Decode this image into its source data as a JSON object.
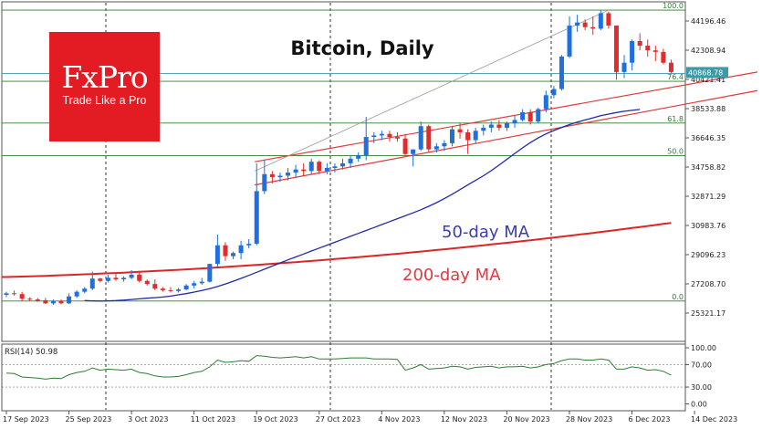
{
  "chart_data": {
    "type": "candlestick",
    "title": "Bitcoin, Daily",
    "brand": {
      "name": "FxPro",
      "tagline": "Trade Like a Pro"
    },
    "price_axis_ticks": [
      "44196.46",
      "42308.94",
      "40421.41",
      "38533.88",
      "36646.35",
      "34758.82",
      "32871.29",
      "30983.76",
      "29096.23",
      "27208.70",
      "25321.17"
    ],
    "current_price": "40868.78",
    "date_ticks": [
      "17 Sep 2023",
      "25 Sep 2023",
      "3 Oct 2023",
      "11 Oct 2023",
      "19 Oct 2023",
      "27 Oct 2023",
      "4 Nov 2023",
      "12 Nov 2023",
      "20 Nov 2023",
      "28 Nov 2023",
      "6 Dec 2023",
      "14 Dec 2023"
    ],
    "fibonacci_levels": [
      {
        "label": "100.0",
        "price": 44900
      },
      {
        "label": "76.4",
        "price": 40300
      },
      {
        "label": "61.8",
        "price": 37600
      },
      {
        "label": "50.0",
        "price": 35500
      },
      {
        "label": "0.0",
        "price": 26100
      }
    ],
    "annotations": [
      {
        "text": "50-day MA",
        "color": "#3a3fb0"
      },
      {
        "text": "200-day MA",
        "color": "#e0393e"
      }
    ],
    "series": [
      {
        "name": "candles",
        "up_color": "#1f6fdc",
        "down_color": "#e32b2b",
        "ohlc": [
          [
            26500,
            26700,
            26350,
            26600
          ],
          [
            26600,
            26780,
            26450,
            26550
          ],
          [
            26550,
            26700,
            26100,
            26250
          ],
          [
            26250,
            26350,
            26100,
            26200
          ],
          [
            26200,
            26300,
            26050,
            26120
          ],
          [
            26150,
            26300,
            25900,
            25950
          ],
          [
            25950,
            26200,
            25850,
            26100
          ],
          [
            26100,
            26200,
            25900,
            25950
          ],
          [
            25950,
            26600,
            25900,
            26400
          ],
          [
            26400,
            26800,
            26300,
            26700
          ],
          [
            26700,
            27000,
            26600,
            26900
          ],
          [
            26900,
            28000,
            26800,
            27550
          ],
          [
            27550,
            27600,
            27300,
            27400
          ],
          [
            27400,
            27800,
            27300,
            27600
          ],
          [
            27600,
            27900,
            27400,
            27500
          ],
          [
            27500,
            27700,
            27350,
            27600
          ],
          [
            27600,
            28100,
            27500,
            27800
          ],
          [
            27800,
            28000,
            27300,
            27400
          ],
          [
            27400,
            27500,
            27100,
            27200
          ],
          [
            27200,
            27500,
            26800,
            26900
          ],
          [
            26900,
            27000,
            26700,
            26800
          ],
          [
            26800,
            27000,
            26650,
            26750
          ],
          [
            26750,
            26950,
            26650,
            26850
          ],
          [
            26850,
            27200,
            26800,
            27100
          ],
          [
            27100,
            27400,
            26900,
            27250
          ],
          [
            27250,
            27600,
            27150,
            27350
          ],
          [
            27350,
            28500,
            27300,
            28500
          ],
          [
            28500,
            30400,
            28300,
            29700
          ],
          [
            29700,
            29900,
            28700,
            29000
          ],
          [
            29000,
            29300,
            28800,
            29200
          ],
          [
            29200,
            30000,
            28800,
            29700
          ],
          [
            29700,
            30100,
            29500,
            29800
          ],
          [
            29800,
            35000,
            29700,
            33200
          ],
          [
            33200,
            35200,
            33000,
            34300
          ],
          [
            34300,
            34500,
            33700,
            34100
          ],
          [
            34100,
            34400,
            33800,
            34200
          ],
          [
            34200,
            34700,
            33900,
            34400
          ],
          [
            34400,
            34900,
            34100,
            34600
          ],
          [
            34600,
            35000,
            34200,
            34500
          ],
          [
            34500,
            35300,
            34300,
            35100
          ],
          [
            35100,
            35200,
            34300,
            34500
          ],
          [
            34500,
            35000,
            34300,
            34700
          ],
          [
            34700,
            35000,
            34400,
            34800
          ],
          [
            34800,
            35300,
            34600,
            35000
          ],
          [
            35000,
            35500,
            34700,
            35300
          ],
          [
            35300,
            35700,
            35100,
            35500
          ],
          [
            35500,
            38000,
            35200,
            36700
          ],
          [
            36700,
            37000,
            36300,
            36800
          ],
          [
            36800,
            37100,
            36500,
            36900
          ],
          [
            36900,
            37100,
            36400,
            36700
          ],
          [
            36700,
            37000,
            36400,
            36600
          ],
          [
            36600,
            36900,
            35500,
            35600
          ],
          [
            35600,
            35900,
            34800,
            35900
          ],
          [
            35900,
            37700,
            35800,
            37400
          ],
          [
            37400,
            37500,
            35700,
            35900
          ],
          [
            35900,
            36300,
            35700,
            36100
          ],
          [
            36100,
            36500,
            35800,
            36300
          ],
          [
            36300,
            37400,
            36100,
            37200
          ],
          [
            37200,
            37600,
            36600,
            37000
          ],
          [
            37000,
            37200,
            35600,
            36500
          ],
          [
            36500,
            37300,
            36300,
            37100
          ],
          [
            37100,
            37500,
            36800,
            37300
          ],
          [
            37300,
            37700,
            37000,
            37500
          ],
          [
            37500,
            37800,
            37100,
            37300
          ],
          [
            37300,
            37700,
            37100,
            37600
          ],
          [
            37600,
            38100,
            37300,
            37800
          ],
          [
            37800,
            38500,
            37700,
            38300
          ],
          [
            38300,
            38500,
            37500,
            37700
          ],
          [
            37700,
            38600,
            37600,
            38500
          ],
          [
            38500,
            39700,
            38300,
            39400
          ],
          [
            39400,
            40000,
            39200,
            39800
          ],
          [
            39800,
            42000,
            39700,
            41900
          ],
          [
            41900,
            44500,
            41800,
            43900
          ],
          [
            43900,
            44600,
            43500,
            44100
          ],
          [
            44100,
            44300,
            43600,
            43800
          ],
          [
            43800,
            44500,
            43300,
            43700
          ],
          [
            43700,
            44900,
            43600,
            44700
          ],
          [
            44700,
            44800,
            43700,
            43900
          ],
          [
            43900,
            43900,
            40400,
            40900
          ],
          [
            40900,
            42000,
            40500,
            41500
          ],
          [
            41500,
            43000,
            41000,
            42900
          ],
          [
            42900,
            43400,
            42300,
            42600
          ],
          [
            42600,
            43000,
            41900,
            42300
          ],
          [
            42300,
            42600,
            41600,
            42200
          ],
          [
            42200,
            42400,
            41400,
            41500
          ],
          [
            41500,
            41700,
            40800,
            40900
          ]
        ]
      },
      {
        "name": "50-day MA",
        "values_start_index": 10,
        "values": [
          26130,
          26110,
          26100,
          26110,
          26130,
          26160,
          26200,
          26240,
          26280,
          26320,
          26360,
          26420,
          26500,
          26580,
          26680,
          26780,
          26900,
          27040,
          27200,
          27380,
          27560,
          27760,
          27960,
          28160,
          28360,
          28560,
          28760,
          28950,
          29140,
          29330,
          29520,
          29710,
          29900,
          30090,
          30280,
          30470,
          30660,
          30850,
          31040,
          31230,
          31420,
          31610,
          31800,
          32000,
          32220,
          32460,
          32720,
          33000,
          33300,
          33600,
          33900,
          34200,
          34520,
          34880,
          35260,
          35640,
          36000,
          36340,
          36640,
          36900,
          37120,
          37320,
          37500,
          37660,
          37800,
          37940,
          38080,
          38180,
          38280,
          38360,
          38420,
          38480
        ]
      },
      {
        "name": "200-day MA",
        "values_start_index": 0,
        "values_range": [
          27650,
          31150
        ]
      }
    ],
    "indicator": {
      "label": "RSI(14) 50.98",
      "value": "50.98",
      "ticks": [
        "100.00",
        "70.00",
        "30.00",
        "0.00"
      ],
      "values": [
        55,
        54,
        48,
        47,
        46,
        44,
        46,
        45,
        52,
        56,
        58,
        64,
        60,
        62,
        61,
        60,
        62,
        56,
        54,
        50,
        48,
        48,
        49,
        52,
        56,
        58,
        66,
        78,
        74,
        75,
        77,
        76,
        86,
        85,
        83,
        82,
        83,
        84,
        82,
        84,
        80,
        80,
        80,
        81,
        82,
        82,
        82,
        80,
        80,
        80,
        79,
        60,
        64,
        70,
        62,
        63,
        64,
        67,
        66,
        62,
        65,
        66,
        67,
        64,
        66,
        66,
        67,
        64,
        66,
        70,
        72,
        77,
        80,
        80,
        78,
        78,
        80,
        78,
        62,
        62,
        66,
        64,
        60,
        61,
        58,
        51
      ]
    }
  }
}
